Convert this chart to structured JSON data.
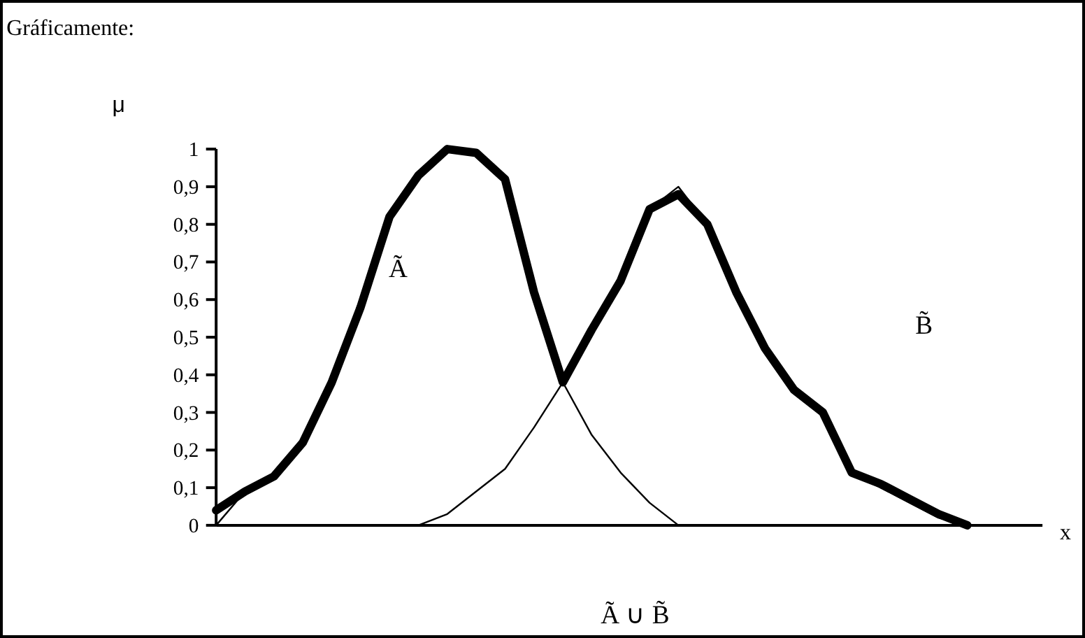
{
  "chart_data": {
    "type": "line",
    "title": "Gráficamente:",
    "xlabel": "x",
    "ylabel": "μ",
    "categories": [
      null,
      null,
      null,
      null,
      null,
      null,
      null,
      null,
      null,
      null,
      null,
      null,
      null,
      null,
      null,
      null,
      null,
      null,
      null,
      null,
      null,
      null,
      null,
      null,
      null,
      null,
      null,
      null,
      null
    ],
    "series": [
      {
        "color": "#000000",
        "values": [
          0.0,
          0.09,
          0.13,
          0.22,
          0.38,
          0.58,
          0.82,
          0.93,
          1.0,
          0.99,
          0.92,
          0.62,
          0.38,
          0.24,
          0.14,
          0.06,
          0.0,
          null,
          null,
          null,
          null,
          null,
          null,
          null,
          null,
          null,
          null,
          null,
          null
        ]
      },
      {
        "color": "#000000",
        "values": [
          null,
          null,
          null,
          null,
          null,
          null,
          null,
          0.0,
          0.03,
          0.09,
          0.15,
          0.26,
          0.38,
          0.52,
          0.65,
          0.84,
          0.9,
          0.8,
          0.62,
          0.47,
          0.36,
          0.3,
          0.14,
          0.1,
          0.06,
          0.02,
          0.0,
          null,
          null
        ]
      },
      {
        "color": "#000000",
        "values": [
          0.04,
          0.09,
          0.13,
          0.22,
          0.38,
          0.58,
          0.82,
          0.93,
          1.0,
          0.99,
          0.92,
          0.62,
          0.38,
          0.52,
          0.65,
          0.84,
          0.88,
          0.8,
          0.62,
          0.47,
          0.36,
          0.3,
          0.14,
          0.11,
          0.07,
          0.03,
          0.0,
          null,
          null
        ]
      }
    ],
    "ylim": [
      0,
      1
    ],
    "yticks": [
      0,
      {
        "value": 0.1,
        "label": "0,1"
      },
      {
        "value": 0.2,
        "label": "0,2"
      },
      {
        "value": 0.3,
        "label": "0,3"
      },
      {
        "value": 0.4,
        "label": "0,4"
      },
      {
        "value": 0.5,
        "label": "0,5"
      },
      {
        "value": 0.6,
        "label": "0,6"
      },
      {
        "value": 0.7,
        "label": "0,7"
      },
      {
        "value": 0.8,
        "label": "0,8"
      },
      {
        "value": 0.9,
        "label": "0,9"
      },
      1
    ],
    "tick_labels": "y",
    "grid": false,
    "annotations": [
      "Ã",
      "B̃",
      "Ã ∪ B̃"
    ]
  }
}
